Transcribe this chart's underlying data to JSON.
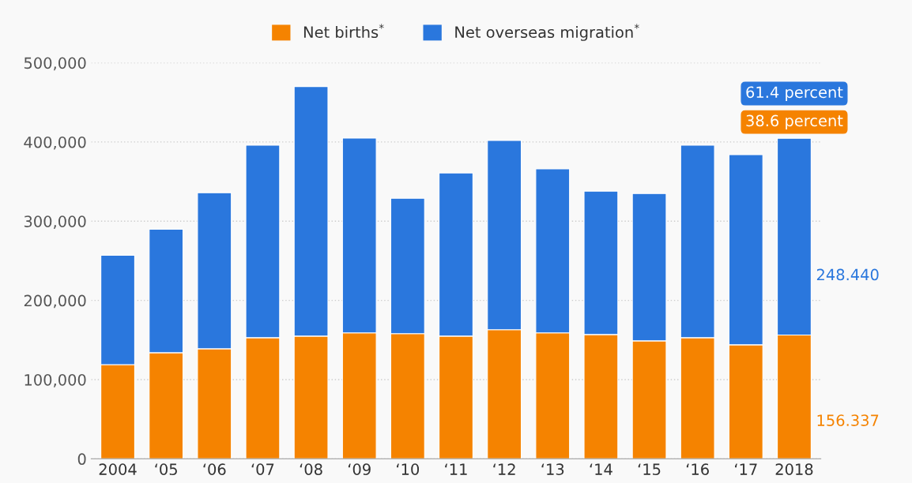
{
  "chart_data": {
    "type": "bar",
    "stacked": true,
    "categories": [
      "2004",
      "‘05",
      "‘06",
      "‘07",
      "‘08",
      "‘09",
      "‘10",
      "‘11",
      "‘12",
      "‘13",
      "‘14",
      "‘15",
      "‘16",
      "‘17",
      "2018"
    ],
    "series": [
      {
        "name": "Net births$^{*}$",
        "color": "#f58300",
        "values": [
          119000,
          134000,
          139000,
          153000,
          155000,
          159000,
          158000,
          155000,
          163000,
          159000,
          157000,
          149000,
          153000,
          144000,
          156337
        ]
      },
      {
        "name": "Net overseas migration$^{*}$",
        "color": "#2a77dd",
        "values": [
          138000,
          156000,
          197000,
          243000,
          315000,
          246000,
          171000,
          206000,
          239000,
          207000,
          181000,
          186000,
          243000,
          240000,
          248440
        ]
      }
    ],
    "ylim": [
      0,
      500000
    ],
    "yticks": [
      {
        "value": 0,
        "label": "0"
      },
      {
        "value": 100000,
        "label": "100,000"
      },
      {
        "value": 200000,
        "label": "200,000"
      },
      {
        "value": 300000,
        "label": "300,000"
      },
      {
        "value": 400000,
        "label": "400,000"
      },
      {
        "value": 500000,
        "label": "500,000"
      }
    ],
    "grid": "y",
    "legend": "top",
    "annotations": [
      "61.4 percent",
      "38.6 percent",
      "156.337",
      "248.440"
    ]
  }
}
